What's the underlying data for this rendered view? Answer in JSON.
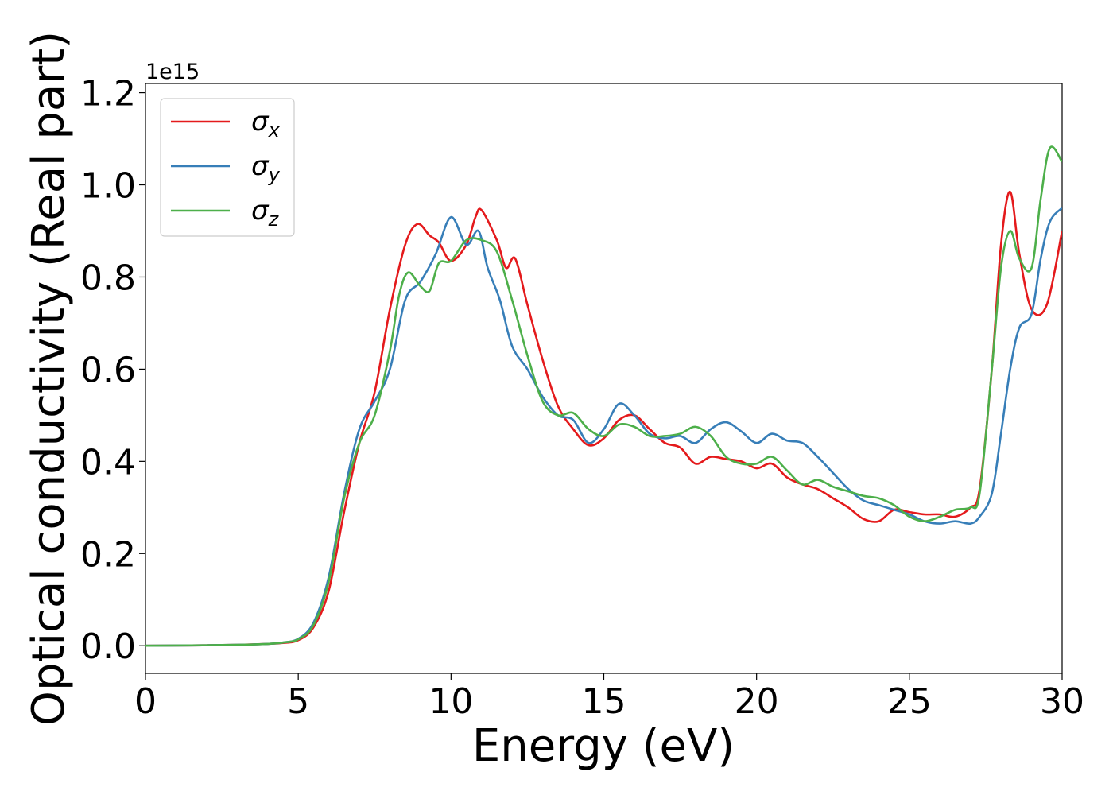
{
  "chart_data": {
    "type": "line",
    "title": "",
    "xlabel": "Energy (eV)",
    "ylabel": "Optical conductivity (Real part)",
    "y_offset_label": "1e15",
    "xlim": [
      0,
      30
    ],
    "ylim": [
      -0.06,
      1.22
    ],
    "xticks": [
      0,
      5,
      10,
      15,
      20,
      25,
      30
    ],
    "yticks": [
      0.0,
      0.2,
      0.4,
      0.6,
      0.8,
      1.0,
      1.2
    ],
    "xtick_labels": [
      "0",
      "5",
      "10",
      "15",
      "20",
      "25",
      "30"
    ],
    "ytick_labels": [
      "0.0",
      "0.2",
      "0.4",
      "0.6",
      "0.8",
      "1.0",
      "1.2"
    ],
    "grid": false,
    "legend_position": "top-left",
    "series": [
      {
        "name_base": "σ",
        "name_sub": "x",
        "color": "#e41a1c",
        "x": [
          0,
          1,
          2,
          3,
          4,
          4.5,
          5,
          5.5,
          6,
          6.5,
          7,
          7.5,
          8,
          8.5,
          8.9,
          9.3,
          9.6,
          10,
          10.5,
          10.8,
          11,
          11.5,
          11.8,
          12.1,
          12.5,
          13,
          13.5,
          14,
          14.5,
          15,
          15.5,
          16,
          16.5,
          17,
          17.5,
          18,
          18.5,
          19,
          19.5,
          20,
          20.5,
          21,
          21.5,
          22,
          22.5,
          23,
          23.5,
          24,
          24.5,
          25,
          25.5,
          26,
          26.5,
          27,
          27.3,
          27.7,
          28,
          28.3,
          28.6,
          29,
          29.5,
          30
        ],
        "y": [
          0,
          0.0005,
          0.001,
          0.002,
          0.004,
          0.006,
          0.012,
          0.04,
          0.12,
          0.29,
          0.44,
          0.55,
          0.73,
          0.87,
          0.915,
          0.89,
          0.875,
          0.835,
          0.87,
          0.93,
          0.945,
          0.88,
          0.82,
          0.84,
          0.74,
          0.62,
          0.52,
          0.47,
          0.435,
          0.45,
          0.49,
          0.5,
          0.47,
          0.44,
          0.43,
          0.395,
          0.41,
          0.405,
          0.4,
          0.385,
          0.395,
          0.365,
          0.35,
          0.34,
          0.32,
          0.3,
          0.275,
          0.27,
          0.295,
          0.29,
          0.285,
          0.285,
          0.28,
          0.3,
          0.34,
          0.6,
          0.87,
          0.985,
          0.85,
          0.73,
          0.74,
          0.9
        ]
      },
      {
        "name_base": "σ",
        "name_sub": "y",
        "color": "#377eb8",
        "x": [
          0,
          1,
          2,
          3,
          4,
          4.5,
          5,
          5.5,
          6,
          6.5,
          7,
          7.5,
          8,
          8.5,
          9,
          9.5,
          10,
          10.5,
          10.9,
          11.2,
          11.6,
          12,
          12.5,
          13,
          13.5,
          14,
          14.5,
          15,
          15.5,
          16,
          16.5,
          17,
          17.5,
          18,
          18.5,
          19,
          19.5,
          20,
          20.5,
          21,
          21.5,
          22,
          22.5,
          23,
          23.5,
          24,
          24.5,
          25,
          25.5,
          26,
          26.5,
          27,
          27.3,
          27.7,
          28,
          28.3,
          28.6,
          29,
          29.3,
          29.6,
          30
        ],
        "y": [
          0,
          0.0005,
          0.001,
          0.002,
          0.004,
          0.007,
          0.015,
          0.05,
          0.15,
          0.33,
          0.47,
          0.53,
          0.6,
          0.75,
          0.79,
          0.85,
          0.93,
          0.87,
          0.9,
          0.82,
          0.75,
          0.65,
          0.6,
          0.54,
          0.5,
          0.49,
          0.44,
          0.47,
          0.525,
          0.5,
          0.46,
          0.45,
          0.455,
          0.44,
          0.47,
          0.485,
          0.465,
          0.44,
          0.46,
          0.445,
          0.44,
          0.41,
          0.375,
          0.34,
          0.315,
          0.305,
          0.295,
          0.285,
          0.27,
          0.265,
          0.27,
          0.265,
          0.28,
          0.33,
          0.46,
          0.6,
          0.69,
          0.72,
          0.84,
          0.92,
          0.95
        ]
      },
      {
        "name_base": "σ",
        "name_sub": "z",
        "color": "#4daf4a",
        "x": [
          0,
          1,
          2,
          3,
          4,
          4.5,
          5,
          5.5,
          6,
          6.5,
          7,
          7.5,
          8,
          8.3,
          8.6,
          9,
          9.3,
          9.6,
          10,
          10.5,
          11,
          11.5,
          12,
          12.5,
          13,
          13.5,
          14,
          14.5,
          15,
          15.5,
          16,
          16.5,
          17,
          17.5,
          18,
          18.5,
          19,
          19.5,
          20,
          20.5,
          21,
          21.5,
          22,
          22.5,
          23,
          23.5,
          24,
          24.5,
          25,
          25.5,
          26,
          26.5,
          27,
          27.3,
          27.7,
          28,
          28.3,
          28.6,
          29,
          29.3,
          29.6,
          30
        ],
        "y": [
          0,
          0.0005,
          0.001,
          0.002,
          0.004,
          0.007,
          0.014,
          0.045,
          0.14,
          0.32,
          0.44,
          0.5,
          0.64,
          0.76,
          0.81,
          0.78,
          0.77,
          0.83,
          0.835,
          0.88,
          0.88,
          0.855,
          0.75,
          0.63,
          0.53,
          0.5,
          0.505,
          0.47,
          0.455,
          0.48,
          0.475,
          0.455,
          0.455,
          0.46,
          0.475,
          0.455,
          0.41,
          0.395,
          0.395,
          0.41,
          0.38,
          0.35,
          0.36,
          0.345,
          0.335,
          0.325,
          0.32,
          0.305,
          0.28,
          0.27,
          0.28,
          0.295,
          0.3,
          0.33,
          0.6,
          0.82,
          0.9,
          0.84,
          0.82,
          0.97,
          1.08,
          1.05
        ]
      }
    ]
  }
}
